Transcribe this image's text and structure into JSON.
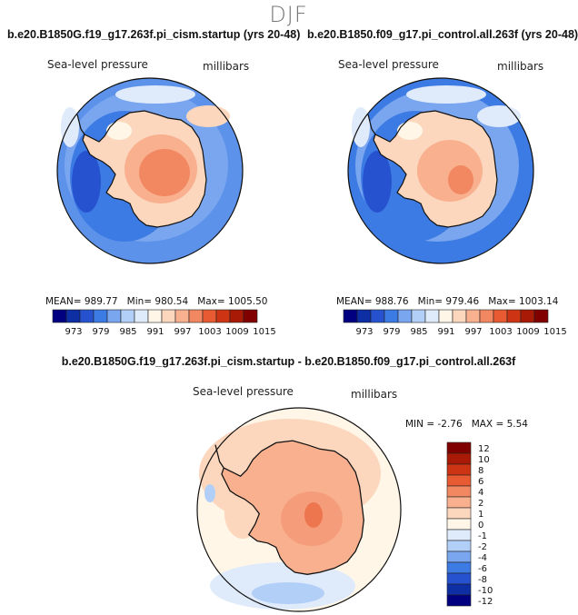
{
  "page": {
    "season": "DJF",
    "diff_title": "b.e20.B1850G.f19_g17.263f.pi_cism.startup - b.e20.B1850.f09_g17.pi_control.all.263f"
  },
  "colors": {
    "scale": [
      "#000080",
      "#0d2fa3",
      "#2652d0",
      "#3d7be4",
      "#79a6ef",
      "#b2cff8",
      "#dfeafb",
      "#fff6e8",
      "#fcd7bd",
      "#f8b08f",
      "#f28862",
      "#e85b32",
      "#cd3413",
      "#a81a06",
      "#800000"
    ],
    "coast": "#111111"
  },
  "panels": [
    {
      "title": "b.e20.B1850G.f19_g17.263f.pi_cism.startup (yrs 20-48)",
      "variable": "Sea-level pressure",
      "units": "millibars",
      "mean_label": "MEAN=",
      "mean": "989.77",
      "min_label": "Min=",
      "min": "980.54",
      "max_label": "Max=",
      "max": "1005.50",
      "colorbar_ticks": [
        "973",
        "979",
        "985",
        "991",
        "997",
        "1003",
        "1009",
        "1015"
      ]
    },
    {
      "title": "b.e20.B1850.f09_g17.pi_control.all.263f (yrs 20-48)",
      "variable": "Sea-level pressure",
      "units": "millibars",
      "mean_label": "MEAN=",
      "mean": "988.76",
      "min_label": "Min=",
      "min": "979.46",
      "max_label": "Max=",
      "max": "1003.14",
      "colorbar_ticks": [
        "973",
        "979",
        "985",
        "991",
        "997",
        "1003",
        "1009",
        "1015"
      ]
    }
  ],
  "diff": {
    "variable": "Sea-level pressure",
    "units": "millibars",
    "min_label": "MIN =",
    "min": "-2.76",
    "max_label": "MAX =",
    "max": "5.54",
    "colorbar_levels": [
      "12",
      "10",
      "8",
      "6",
      "4",
      "2",
      "1",
      "0",
      "-1",
      "-2",
      "-4",
      "-6",
      "-8",
      "-10",
      "-12"
    ]
  }
}
